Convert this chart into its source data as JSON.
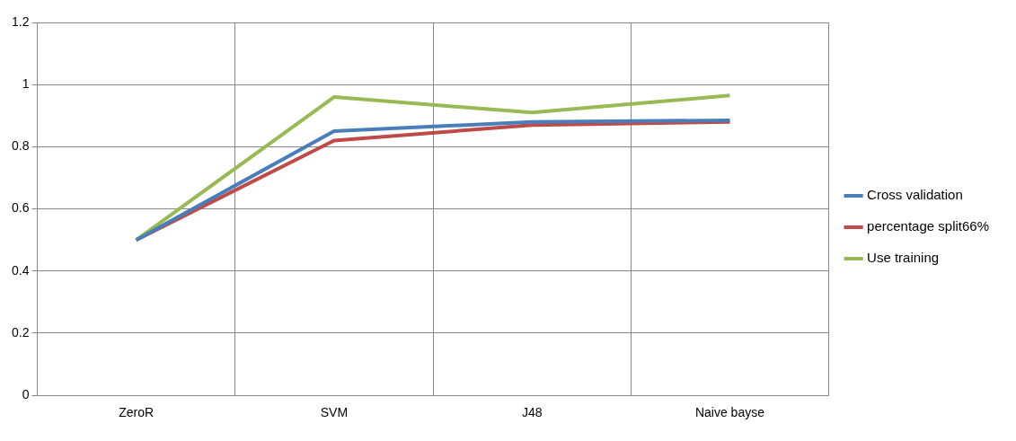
{
  "chart_data": {
    "type": "line",
    "categories": [
      "ZeroR",
      "SVM",
      "J48",
      "Naive bayse"
    ],
    "series": [
      {
        "name": "Cross validation",
        "color": "#4a7ebb",
        "values": [
          0.5,
          0.85,
          0.88,
          0.885
        ]
      },
      {
        "name": "percentage split66%",
        "color": "#be4b48",
        "values": [
          0.5,
          0.82,
          0.87,
          0.88
        ]
      },
      {
        "name": "Use training",
        "color": "#98b954",
        "values": [
          0.5,
          0.96,
          0.91,
          0.965
        ]
      }
    ],
    "ylim": [
      0,
      1.2
    ],
    "yticks": [
      0,
      0.2,
      0.4,
      0.6,
      0.8,
      1,
      1.2
    ],
    "grid": true,
    "legend": "right",
    "marker": "none",
    "line_style": "solid"
  }
}
